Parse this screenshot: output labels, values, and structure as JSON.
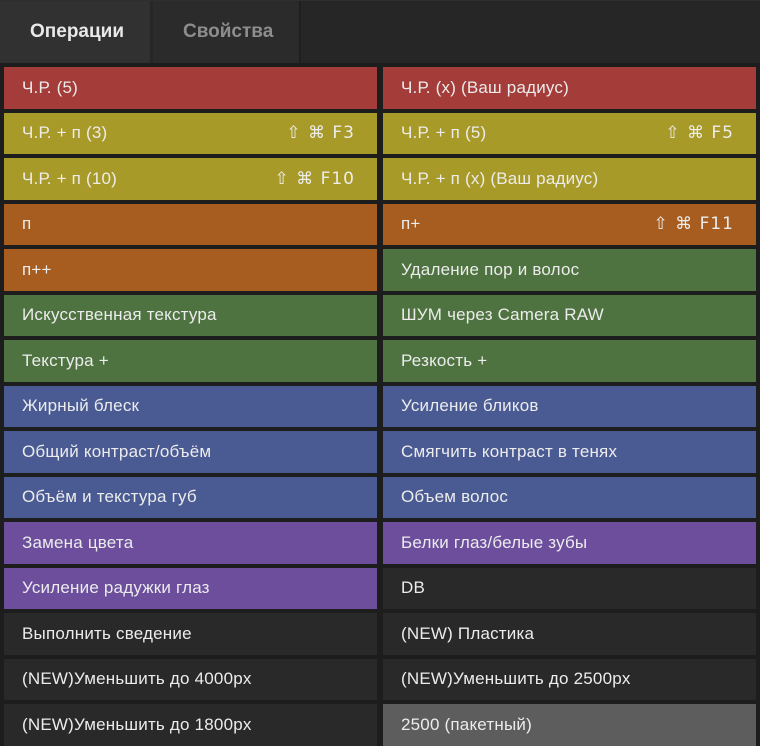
{
  "panel": {
    "tabs": [
      {
        "label": "Операции",
        "active": true
      },
      {
        "label": "Свойства",
        "active": false
      }
    ]
  },
  "palette": {
    "red": "#a43c39",
    "olive": "#a89a28",
    "orange": "#a65d1f",
    "green": "#4e7340",
    "blue": "#4a5b94",
    "purple": "#6c4e9d",
    "dark": "#292929",
    "gray": "#5d5d5d"
  },
  "shortcut_icons": [
    "shift-icon",
    "command-icon"
  ],
  "actions": [
    {
      "label": "Ч.Р. (5)",
      "color": "red"
    },
    {
      "label": "Ч.Р. (x) (Ваш радиус)",
      "color": "red"
    },
    {
      "label": "Ч.Р. + п (3)",
      "shortcut": "⇧ ⌘ F3",
      "color": "olive"
    },
    {
      "label": "Ч.Р. + п (5)",
      "shortcut": "⇧ ⌘ F5",
      "color": "olive"
    },
    {
      "label": "Ч.Р. + п (10)",
      "shortcut": "⇧ ⌘ F10",
      "color": "olive"
    },
    {
      "label": "Ч.Р. + п (x) (Ваш радиус)",
      "color": "olive"
    },
    {
      "label": "п",
      "color": "orange"
    },
    {
      "label": "п+",
      "shortcut": "⇧ ⌘ F11",
      "color": "orange"
    },
    {
      "label": "п++",
      "color": "orange"
    },
    {
      "label": "Удаление пор и волос",
      "color": "green"
    },
    {
      "label": "Искусственная текстура",
      "color": "green"
    },
    {
      "label": "ШУМ через Camera RAW",
      "color": "green"
    },
    {
      "label": "Текстура +",
      "color": "green"
    },
    {
      "label": "Резкость +",
      "color": "green"
    },
    {
      "label": "Жирный блеск",
      "color": "blue"
    },
    {
      "label": "Усиление бликов",
      "color": "blue"
    },
    {
      "label": "Общий контраст/объём",
      "color": "blue"
    },
    {
      "label": "Смягчить контраст в тенях",
      "color": "blue"
    },
    {
      "label": "Объём и текстура губ",
      "color": "blue"
    },
    {
      "label": "Объем волос",
      "color": "blue"
    },
    {
      "label": "Замена цвета",
      "color": "purple"
    },
    {
      "label": "Белки глаз/белые зубы",
      "color": "purple"
    },
    {
      "label": "Усиление радужки глаз",
      "color": "purple"
    },
    {
      "label": "DB",
      "color": "dark"
    },
    {
      "label": "Выполнить сведение",
      "color": "dark"
    },
    {
      "label": "(NEW) Пластика",
      "color": "dark"
    },
    {
      "label": "(NEW)Уменьшить до 4000px",
      "color": "dark"
    },
    {
      "label": "(NEW)Уменьшить до 2500px",
      "color": "dark"
    },
    {
      "label": "(NEW)Уменьшить до 1800px",
      "color": "dark"
    },
    {
      "label": "2500 (пакетный)",
      "color": "gray"
    }
  ]
}
